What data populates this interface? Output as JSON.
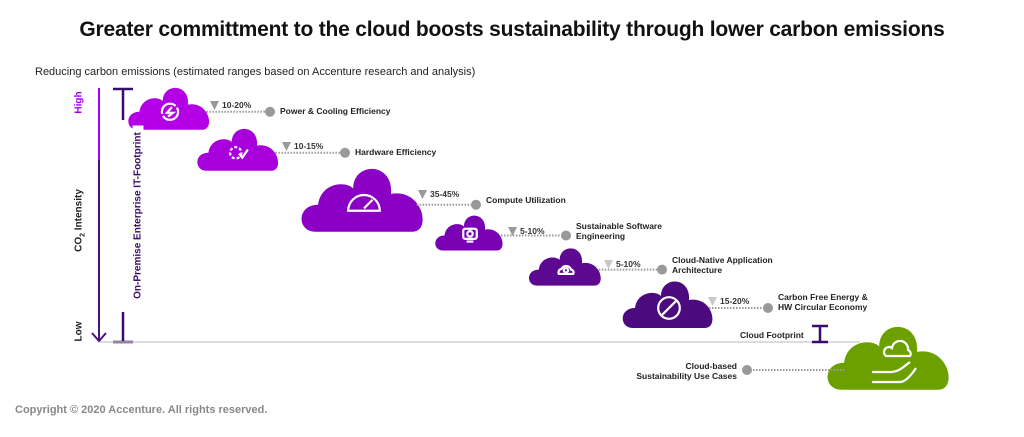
{
  "title": "Greater committment to the cloud boosts sustainability through lower carbon emissions",
  "subtitle": "Reducing carbon emissions (estimated ranges based on Accenture research and analysis)",
  "axis": {
    "high": "High",
    "low": "Low",
    "co2_prefix": "CO",
    "co2_sub": "2",
    "co2_suffix": " Intensity",
    "footprint_label": "On-Premise Enterprise IT-Footprint"
  },
  "steps": [
    {
      "percent": "10-20%",
      "label": [
        "Power & Cooling Efficiency"
      ],
      "icon": "power-icon",
      "color": "#b400e6"
    },
    {
      "percent": "10-15%",
      "label": [
        "Hardware Efficiency"
      ],
      "icon": "gear-check-icon",
      "color": "#a800dc"
    },
    {
      "percent": "35-45%",
      "label": [
        "Compute Utilization"
      ],
      "icon": "gauge-icon",
      "color": "#8a00c4"
    },
    {
      "percent": "5-10%",
      "label": [
        "Sustainable Software",
        "Engineering"
      ],
      "icon": "monitor-gear-icon",
      "color": "#7a00b4"
    },
    {
      "percent": "5-10%",
      "label": [
        "Cloud-Native Application",
        "Architecture"
      ],
      "icon": "cloud-gear-icon",
      "color": "#5c0890"
    },
    {
      "percent": "15-20%",
      "label": [
        "Carbon Free Energy &",
        "HW Circular Economy"
      ],
      "icon": "no-entry-icon",
      "color": "#4b0a7d"
    }
  ],
  "cloud_footprint": "Cloud Footprint",
  "use_cases": {
    "label": [
      "Cloud-based",
      "Sustainability Use Cases"
    ],
    "icon": "hand-plant-cloud-icon",
    "color": "#6ca000"
  },
  "colors": {
    "axis_dark": "#4a1080",
    "axis_bright": "#a100ff",
    "connector": "#999999"
  },
  "copyright": "Copyright © 2020 Accenture. All rights reserved."
}
